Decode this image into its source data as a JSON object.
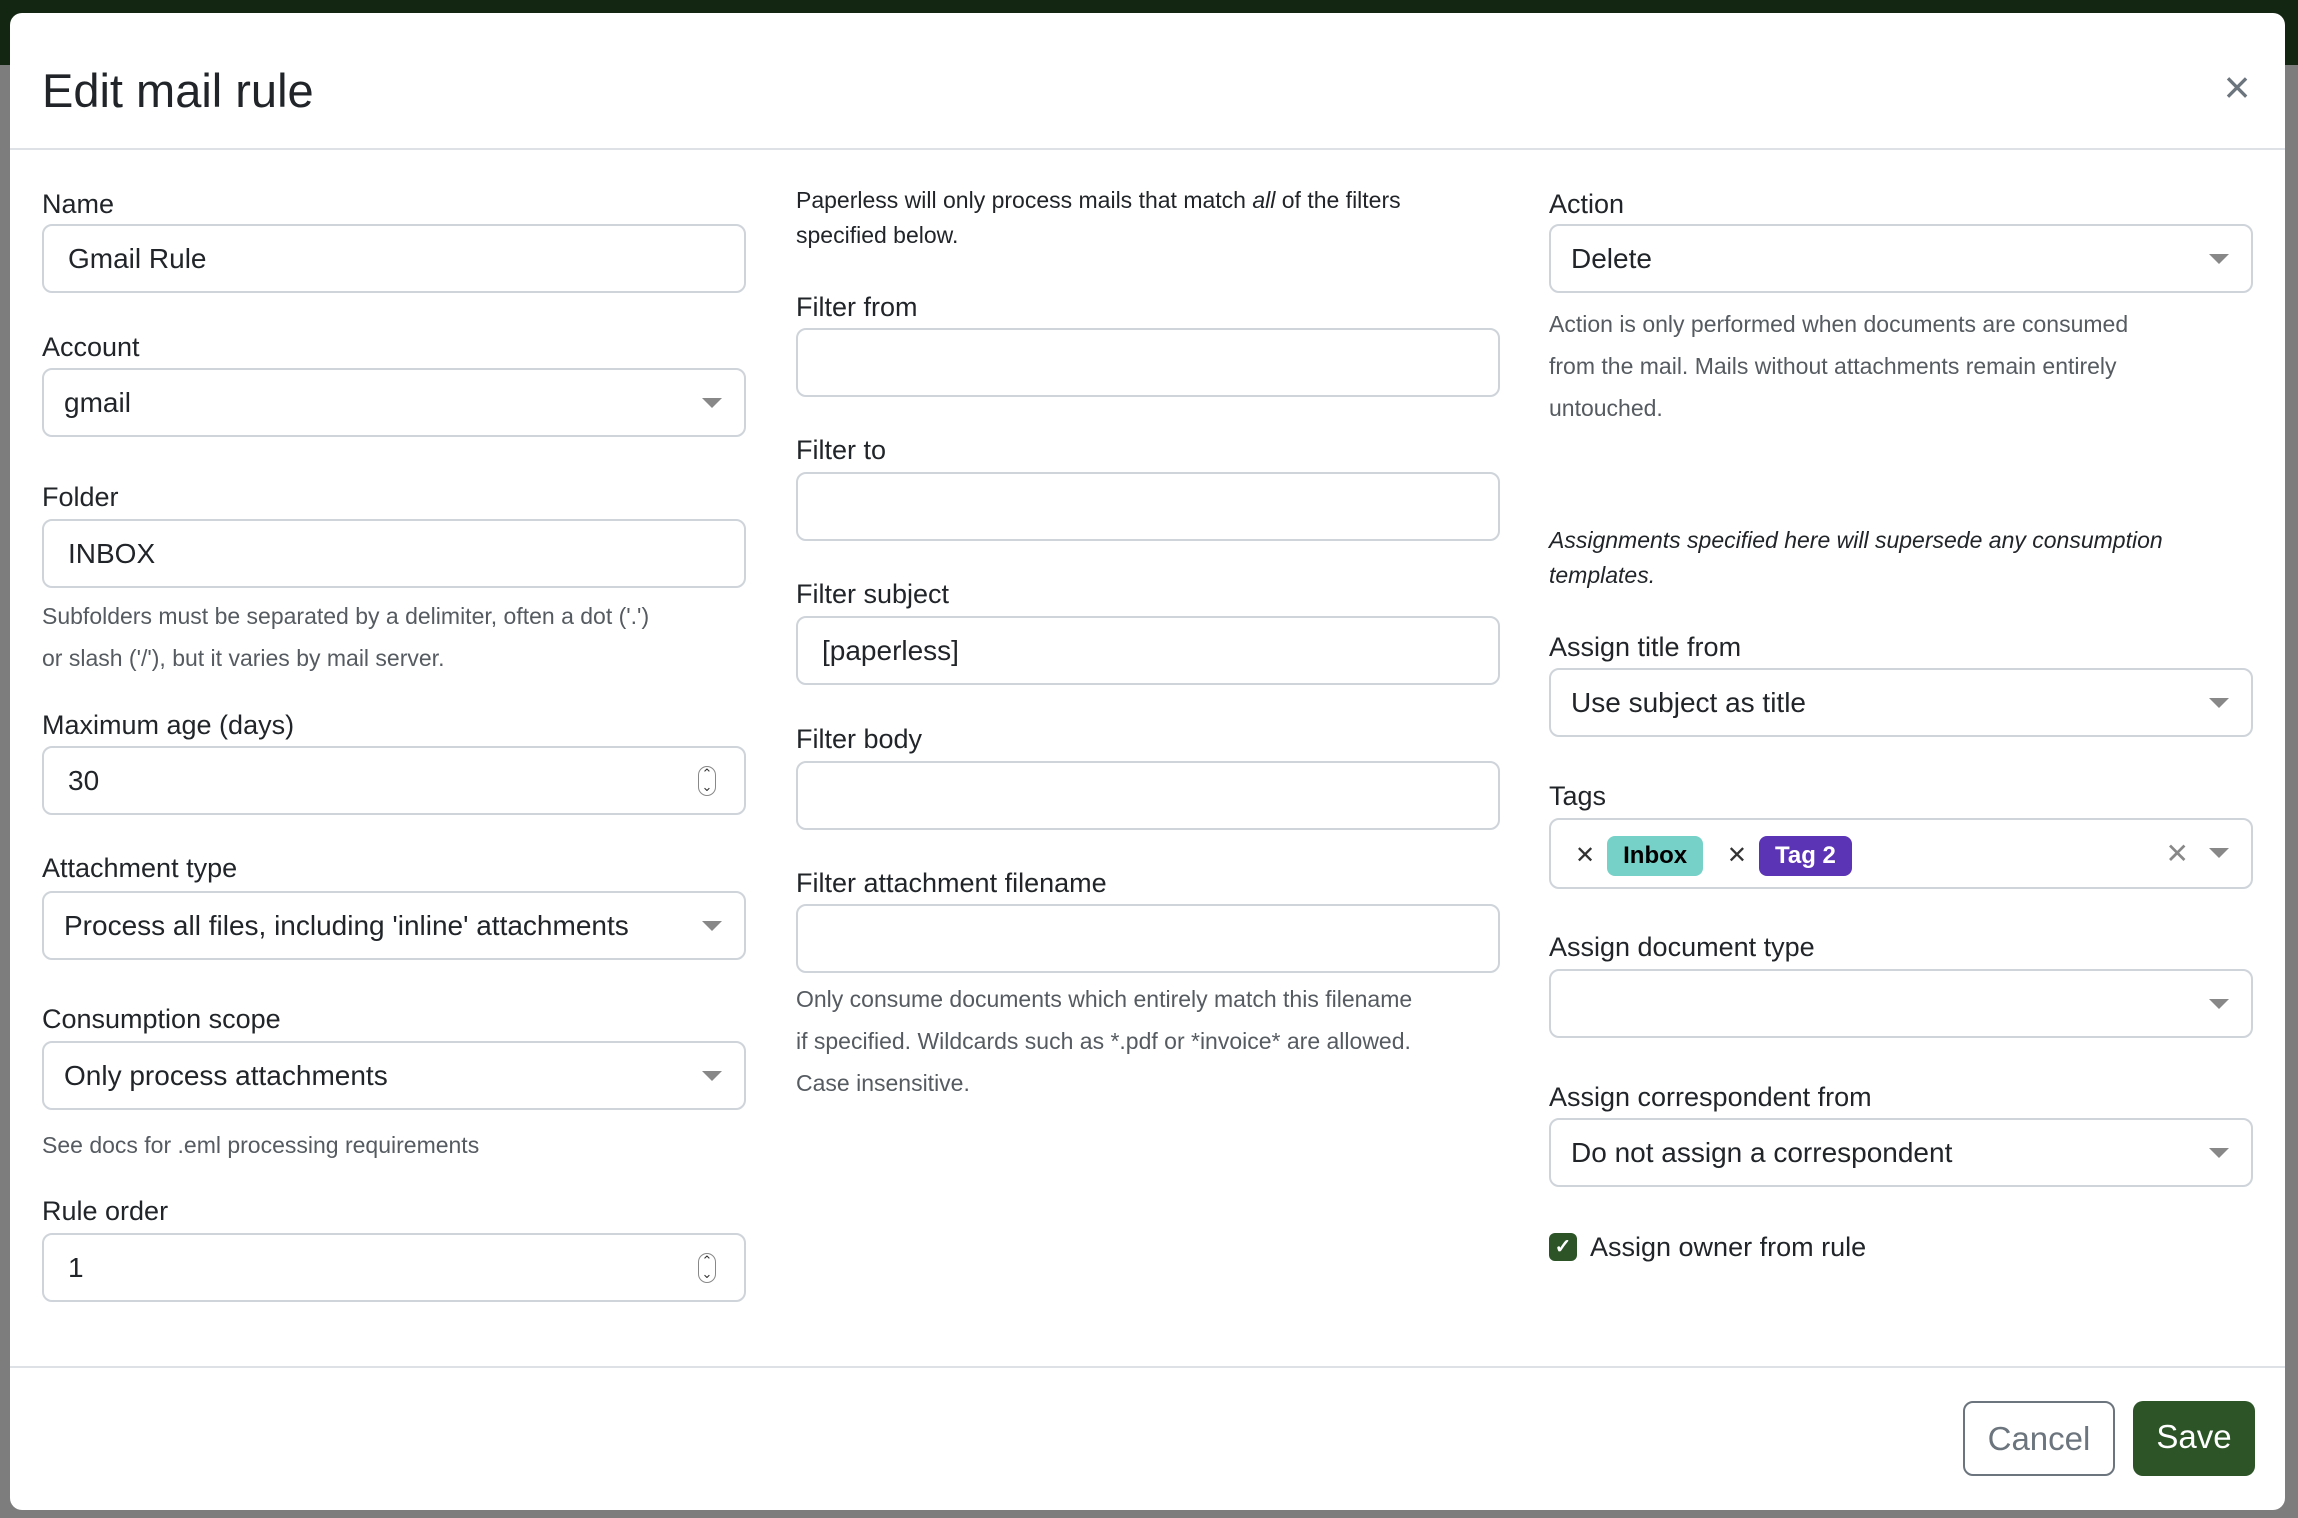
{
  "modal": {
    "title": "Edit mail rule",
    "close_icon": "close-icon"
  },
  "left": {
    "name_label": "Name",
    "name_value": "Gmail Rule",
    "account_label": "Account",
    "account_value": "gmail",
    "folder_label": "Folder",
    "folder_value": "INBOX",
    "folder_help_1": "Subfolders must be separated by a delimiter, often a dot ('.')",
    "folder_help_2": "or slash ('/'), but it varies by mail server.",
    "max_age_label": "Maximum age (days)",
    "max_age_value": "30",
    "attachment_type_label": "Attachment type",
    "attachment_type_value": "Process all files, including 'inline' attachments",
    "consumption_scope_label": "Consumption scope",
    "consumption_scope_value": "Only process attachments",
    "consumption_scope_help": "See docs for .eml processing requirements",
    "rule_order_label": "Rule order",
    "rule_order_value": "1"
  },
  "middle": {
    "intro_1a": "Paperless will only process mails that match ",
    "intro_1b": "all",
    "intro_1c": " of the filters",
    "intro_2": "specified below.",
    "filter_from_label": "Filter from",
    "filter_from_value": "",
    "filter_to_label": "Filter to",
    "filter_to_value": "",
    "filter_subject_label": "Filter subject",
    "filter_subject_value": "[paperless]",
    "filter_body_label": "Filter body",
    "filter_body_value": "",
    "filter_attachment_label": "Filter attachment filename",
    "filter_attachment_value": "",
    "filter_attachment_help_1": "Only consume documents which entirely match this filename",
    "filter_attachment_help_2": "if specified. Wildcards such as *.pdf or *invoice* are allowed.",
    "filter_attachment_help_3": "Case insensitive."
  },
  "right": {
    "action_label": "Action",
    "action_value": "Delete",
    "action_help_1": "Action is only performed when documents are consumed",
    "action_help_2": "from the mail. Mails without attachments remain entirely",
    "action_help_3": "untouched.",
    "assign_note_1": "Assignments specified here will supersede any consumption",
    "assign_note_2": "templates.",
    "assign_title_label": "Assign title from",
    "assign_title_value": "Use subject as title",
    "tags_label": "Tags",
    "tags": [
      {
        "label": "Inbox",
        "bg": "#76d1c8",
        "fg": "#000000"
      },
      {
        "label": "Tag 2",
        "bg": "#5b34b5",
        "fg": "#ffffff"
      }
    ],
    "doc_type_label": "Assign document type",
    "doc_type_value": "",
    "correspondent_label": "Assign correspondent from",
    "correspondent_value": "Do not assign a correspondent",
    "owner_label": "Assign owner from rule",
    "owner_checked": true
  },
  "footer": {
    "cancel": "Cancel",
    "save": "Save"
  },
  "colors": {
    "primary": "#2c5427",
    "navbar": "#132612"
  }
}
